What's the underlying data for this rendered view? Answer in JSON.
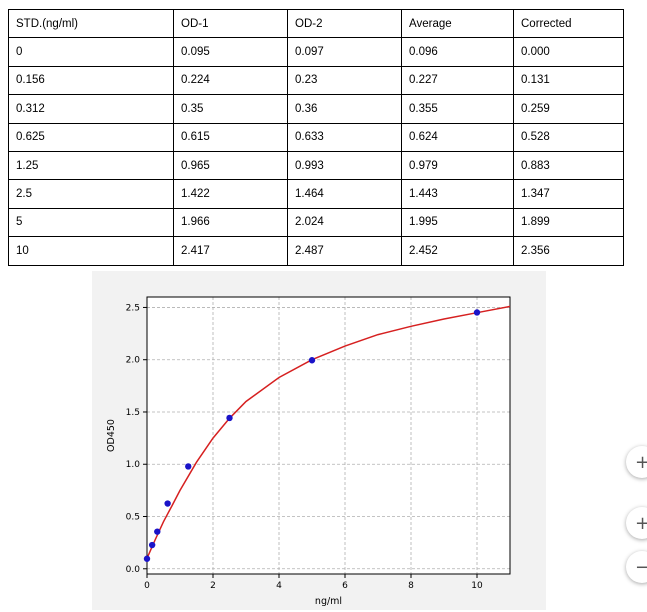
{
  "table": {
    "headers": [
      "STD.(ng/ml)",
      "OD-1",
      "OD-2",
      "Average",
      "Corrected"
    ],
    "rows": [
      [
        "0",
        "0.095",
        "0.097",
        "0.096",
        "0.000"
      ],
      [
        "0.156",
        "0.224",
        "0.23",
        "0.227",
        "0.131"
      ],
      [
        "0.312",
        "0.35",
        "0.36",
        "0.355",
        "0.259"
      ],
      [
        "0.625",
        "0.615",
        "0.633",
        "0.624",
        "0.528"
      ],
      [
        "1.25",
        "0.965",
        "0.993",
        "0.979",
        "0.883"
      ],
      [
        "2.5",
        "1.422",
        "1.464",
        "1.443",
        "1.347"
      ],
      [
        "5",
        "1.966",
        "2.024",
        "1.995",
        "1.899"
      ],
      [
        "10",
        "2.417",
        "2.487",
        "2.452",
        "2.356"
      ]
    ]
  },
  "chart_data": {
    "type": "scatter",
    "title": "",
    "xlabel": "ng/ml",
    "ylabel": "OD450",
    "xlim": [
      0,
      11
    ],
    "ylim": [
      -0.05,
      2.6
    ],
    "x_ticks": [
      0,
      2,
      4,
      6,
      8,
      10
    ],
    "y_ticks": [
      0.0,
      0.5,
      1.0,
      1.5,
      2.0,
      2.5
    ],
    "x_tick_labels": [
      "0",
      "2",
      "4",
      "6",
      "8",
      "10"
    ],
    "y_tick_labels": [
      "0.0",
      "0.5",
      "1.0",
      "1.5",
      "2.0",
      "2.5"
    ],
    "grid": true,
    "series": [
      {
        "kind": "points",
        "color": "#1a13c8",
        "x": [
          0,
          0.156,
          0.312,
          0.625,
          1.25,
          2.5,
          5,
          10
        ],
        "y": [
          0.096,
          0.227,
          0.355,
          0.624,
          0.979,
          1.443,
          1.995,
          2.452
        ]
      },
      {
        "kind": "fit_curve",
        "color": "#d62020",
        "x": [
          0,
          0.25,
          0.5,
          0.75,
          1,
          1.5,
          2,
          2.5,
          3,
          4,
          5,
          6,
          7,
          8,
          9,
          10,
          11
        ],
        "y": [
          0.1,
          0.28,
          0.45,
          0.6,
          0.75,
          1.02,
          1.25,
          1.44,
          1.6,
          1.83,
          2.0,
          2.13,
          2.24,
          2.32,
          2.39,
          2.45,
          2.51
        ]
      }
    ]
  },
  "zoom_controls": {
    "fullscreen_icon": "+",
    "zoom_in_icon": "+",
    "zoom_out_icon": "−"
  }
}
